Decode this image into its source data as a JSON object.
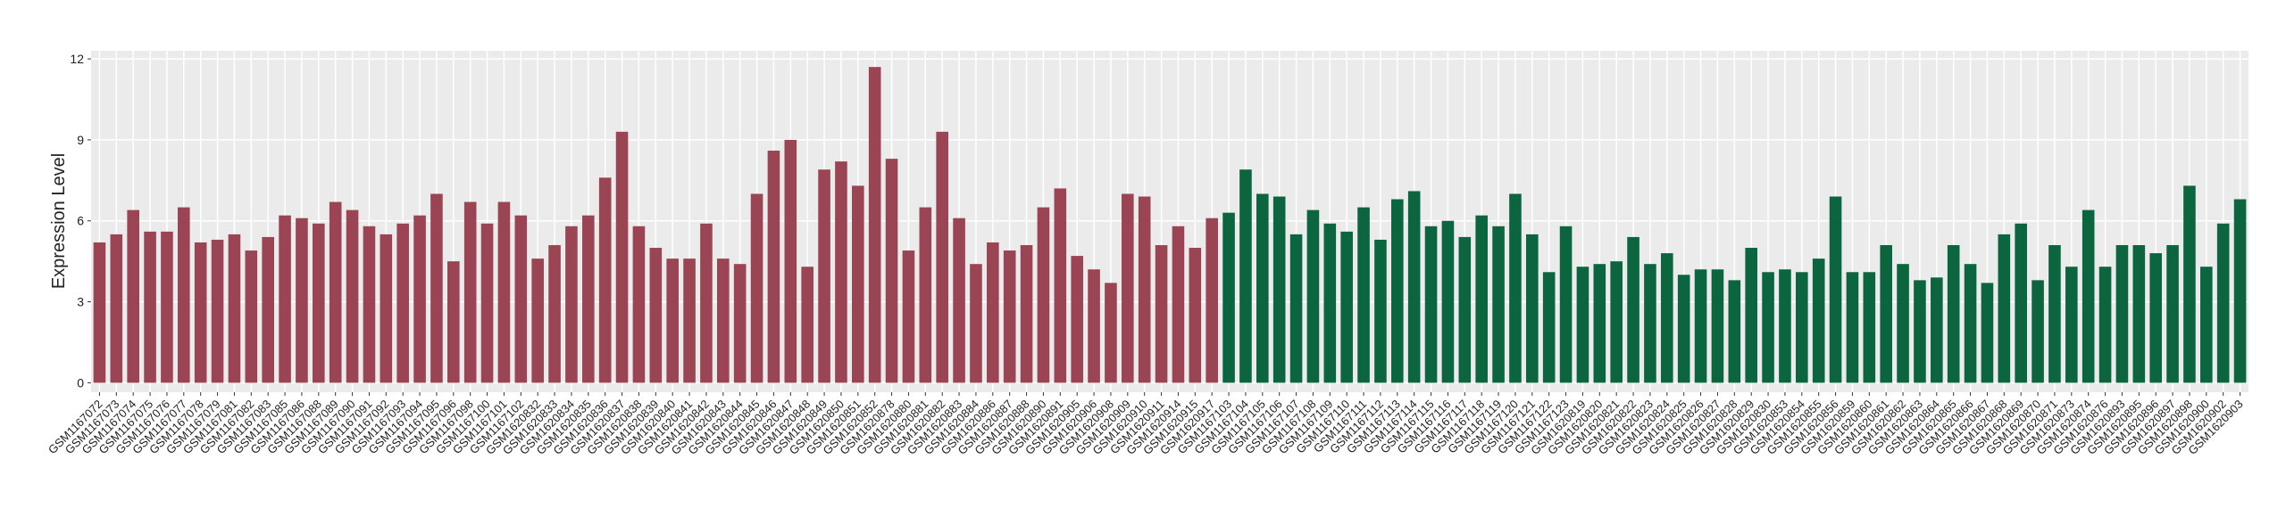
{
  "chart_data": {
    "type": "bar",
    "y_label": "Expression Level",
    "ylim": [
      -0.35,
      12.3
    ],
    "yticks": [
      0,
      3,
      6,
      9,
      12
    ],
    "grid": true,
    "series": [
      {
        "color": "#9b4453",
        "categories": [
          "GSM1167072",
          "GSM1167073",
          "GSM1167074",
          "GSM1167075",
          "GSM1167076",
          "GSM1167077",
          "GSM1167078",
          "GSM1167079",
          "GSM1167081",
          "GSM1167082",
          "GSM1167083",
          "GSM1167085",
          "GSM1167086",
          "GSM1167088",
          "GSM1167089",
          "GSM1167090",
          "GSM1167091",
          "GSM1167092",
          "GSM1167093",
          "GSM1167094",
          "GSM1167095",
          "GSM1167096",
          "GSM1167098",
          "GSM1167100",
          "GSM1167101",
          "GSM1167102",
          "GSM1620832",
          "GSM1620833",
          "GSM1620834",
          "GSM1620835",
          "GSM1620836",
          "GSM1620837",
          "GSM1620838",
          "GSM1620839",
          "GSM1620840",
          "GSM1620841",
          "GSM1620842",
          "GSM1620843",
          "GSM1620844",
          "GSM1620845",
          "GSM1620846",
          "GSM1620847",
          "GSM1620848",
          "GSM1620849",
          "GSM1620850",
          "GSM1620851",
          "GSM1620852",
          "GSM1620878",
          "GSM1620880",
          "GSM1620881",
          "GSM1620882",
          "GSM1620883",
          "GSM1620884",
          "GSM1620886",
          "GSM1620887",
          "GSM1620888",
          "GSM1620890",
          "GSM1620891",
          "GSM1620905",
          "GSM1620906",
          "GSM1620908",
          "GSM1620909",
          "GSM1620910",
          "GSM1620911",
          "GSM1620914",
          "GSM1620915",
          "GSM1620917"
        ],
        "values": [
          5.2,
          5.5,
          6.4,
          5.6,
          5.6,
          6.5,
          5.2,
          5.3,
          5.5,
          4.9,
          5.4,
          6.2,
          6.1,
          5.9,
          6.7,
          6.4,
          5.8,
          5.5,
          5.9,
          6.2,
          7.0,
          4.5,
          6.7,
          5.9,
          6.7,
          6.2,
          4.6,
          5.1,
          5.8,
          6.2,
          7.6,
          9.3,
          5.8,
          5.0,
          4.6,
          4.6,
          5.9,
          4.6,
          4.4,
          7.0,
          8.6,
          9.0,
          4.3,
          7.9,
          8.2,
          7.3,
          11.7,
          8.3,
          4.9,
          6.5,
          9.3,
          6.1,
          4.4,
          5.2,
          4.9,
          5.1,
          6.5,
          7.2,
          4.7,
          4.2,
          3.7,
          7.0,
          6.9,
          5.1,
          5.8,
          5.0,
          6.1
        ]
      },
      {
        "color": "#0b6640",
        "categories": [
          "GSM1167103",
          "GSM1167104",
          "GSM1167105",
          "GSM1167106",
          "GSM1167107",
          "GSM1167108",
          "GSM1167109",
          "GSM1167110",
          "GSM1167111",
          "GSM1167112",
          "GSM1167113",
          "GSM1167114",
          "GSM1167115",
          "GSM1167116",
          "GSM1167117",
          "GSM1167118",
          "GSM1167119",
          "GSM1167120",
          "GSM1167121",
          "GSM1167122",
          "GSM1167123",
          "GSM1620819",
          "GSM1620820",
          "GSM1620821",
          "GSM1620822",
          "GSM1620823",
          "GSM1620824",
          "GSM1620825",
          "GSM1620826",
          "GSM1620827",
          "GSM1620828",
          "GSM1620829",
          "GSM1620830",
          "GSM1620853",
          "GSM1620854",
          "GSM1620855",
          "GSM1620856",
          "GSM1620859",
          "GSM1620860",
          "GSM1620861",
          "GSM1620862",
          "GSM1620863",
          "GSM1620864",
          "GSM1620865",
          "GSM1620866",
          "GSM1620867",
          "GSM1620868",
          "GSM1620869",
          "GSM1620870",
          "GSM1620871",
          "GSM1620873",
          "GSM1620874",
          "GSM1620876",
          "GSM1620893",
          "GSM1620895",
          "GSM1620896",
          "GSM1620897",
          "GSM1620898",
          "GSM1620900",
          "GSM1620902",
          "GSM1620903"
        ],
        "values": [
          6.3,
          7.9,
          7.0,
          6.9,
          5.5,
          6.4,
          5.9,
          5.6,
          6.5,
          5.3,
          6.8,
          7.1,
          5.8,
          6.0,
          5.4,
          6.2,
          5.8,
          7.0,
          5.5,
          4.1,
          5.8,
          4.3,
          4.4,
          4.5,
          5.4,
          4.4,
          4.8,
          4.0,
          4.2,
          4.2,
          3.8,
          5.0,
          4.1,
          4.2,
          4.1,
          4.6,
          6.9,
          4.1,
          4.1,
          5.1,
          4.4,
          3.8,
          3.9,
          5.1,
          4.4,
          3.7,
          5.5,
          5.9,
          3.8,
          5.1,
          4.3,
          6.4,
          4.3,
          5.1,
          5.1,
          4.8,
          5.1,
          7.3,
          4.3,
          5.9,
          6.8
        ]
      }
    ]
  }
}
